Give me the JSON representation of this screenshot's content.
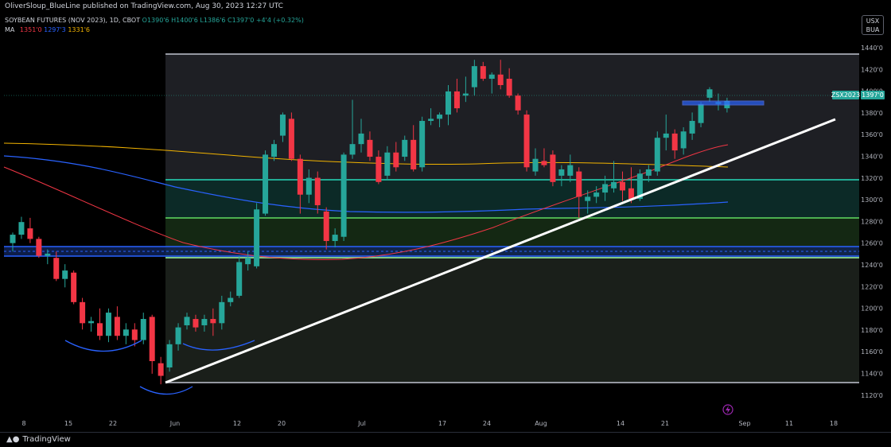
{
  "header": {
    "publisher_line": "OliverSloup_BlueLine published on TradingView.com, Aug 30, 2023 12:27 UTC"
  },
  "legend": {
    "symbol": "SOYBEAN FUTURES (NOV 2023), 1D, CBOT",
    "open_label": "O",
    "open": "1390'6",
    "high_label": "H",
    "high": "1400'6",
    "low_label": "L",
    "low": "1386'6",
    "close_label": "C",
    "close": "1397'0",
    "change": "+4'4 (+0.32%)",
    "ma_label": "MA",
    "ma_values": [
      "1351'0",
      "1297'3",
      "1331'6"
    ],
    "ma_colors": [
      "#f23645",
      "#2962ff",
      "#f2b300"
    ]
  },
  "currency_button": {
    "line1": "USX",
    "line2": "BUA"
  },
  "price_badge": {
    "symbol": "ZSX2023",
    "price": "1397'0"
  },
  "footer": {
    "brand": "TradingView"
  },
  "colors": {
    "up": "#26a69a",
    "down": "#f23645",
    "trend": "#ffffff",
    "bg": "#000000"
  },
  "chart_data": {
    "type": "candlestick",
    "y_ticks": [
      "1440'0",
      "1420'0",
      "1400'0",
      "1380'0",
      "1360'0",
      "1340'0",
      "1320'0",
      "1300'0",
      "1280'0",
      "1260'0",
      "1240'0",
      "1220'0",
      "1200'0",
      "1180'0",
      "1160'0",
      "1140'0",
      "1120'0"
    ],
    "x_ticks": [
      "8",
      "15",
      "22",
      "Jun",
      "12",
      "20",
      "Jul",
      "17",
      "24",
      "Aug",
      "14",
      "21",
      "Sep",
      "11",
      "18"
    ],
    "ylim": [
      1110,
      1452
    ],
    "candles": [
      {
        "o": 1262,
        "h": 1272,
        "l": 1254,
        "c": 1270
      },
      {
        "o": 1270,
        "h": 1287,
        "l": 1266,
        "c": 1282
      },
      {
        "o": 1276,
        "h": 1286,
        "l": 1262,
        "c": 1266
      },
      {
        "o": 1266,
        "h": 1268,
        "l": 1248,
        "c": 1250
      },
      {
        "o": 1250,
        "h": 1256,
        "l": 1242,
        "c": 1252
      },
      {
        "o": 1248,
        "h": 1254,
        "l": 1226,
        "c": 1228
      },
      {
        "o": 1228,
        "h": 1242,
        "l": 1220,
        "c": 1236
      },
      {
        "o": 1234,
        "h": 1236,
        "l": 1204,
        "c": 1206
      },
      {
        "o": 1206,
        "h": 1210,
        "l": 1180,
        "c": 1186
      },
      {
        "o": 1186,
        "h": 1192,
        "l": 1178,
        "c": 1188
      },
      {
        "o": 1186,
        "h": 1200,
        "l": 1170,
        "c": 1174
      },
      {
        "o": 1174,
        "h": 1200,
        "l": 1168,
        "c": 1196
      },
      {
        "o": 1192,
        "h": 1202,
        "l": 1170,
        "c": 1174
      },
      {
        "o": 1174,
        "h": 1186,
        "l": 1166,
        "c": 1180
      },
      {
        "o": 1180,
        "h": 1186,
        "l": 1164,
        "c": 1170
      },
      {
        "o": 1170,
        "h": 1196,
        "l": 1166,
        "c": 1190
      },
      {
        "o": 1192,
        "h": 1194,
        "l": 1138,
        "c": 1150
      },
      {
        "o": 1148,
        "h": 1154,
        "l": 1128,
        "c": 1136
      },
      {
        "o": 1144,
        "h": 1170,
        "l": 1140,
        "c": 1166
      },
      {
        "o": 1166,
        "h": 1186,
        "l": 1160,
        "c": 1182
      },
      {
        "o": 1184,
        "h": 1196,
        "l": 1180,
        "c": 1192
      },
      {
        "o": 1190,
        "h": 1194,
        "l": 1178,
        "c": 1182
      },
      {
        "o": 1184,
        "h": 1194,
        "l": 1178,
        "c": 1190
      },
      {
        "o": 1190,
        "h": 1200,
        "l": 1174,
        "c": 1186
      },
      {
        "o": 1186,
        "h": 1212,
        "l": 1180,
        "c": 1206
      },
      {
        "o": 1206,
        "h": 1216,
        "l": 1202,
        "c": 1210
      },
      {
        "o": 1212,
        "h": 1250,
        "l": 1210,
        "c": 1244
      },
      {
        "o": 1242,
        "h": 1254,
        "l": 1236,
        "c": 1248
      },
      {
        "o": 1240,
        "h": 1300,
        "l": 1238,
        "c": 1294
      },
      {
        "o": 1290,
        "h": 1350,
        "l": 1288,
        "c": 1346
      },
      {
        "o": 1344,
        "h": 1360,
        "l": 1340,
        "c": 1356
      },
      {
        "o": 1364,
        "h": 1386,
        "l": 1358,
        "c": 1384
      },
      {
        "o": 1380,
        "h": 1386,
        "l": 1340,
        "c": 1342
      },
      {
        "o": 1342,
        "h": 1346,
        "l": 1290,
        "c": 1308
      },
      {
        "o": 1308,
        "h": 1332,
        "l": 1300,
        "c": 1324
      },
      {
        "o": 1324,
        "h": 1330,
        "l": 1290,
        "c": 1298
      },
      {
        "o": 1292,
        "h": 1296,
        "l": 1256,
        "c": 1264
      },
      {
        "o": 1264,
        "h": 1276,
        "l": 1258,
        "c": 1270
      },
      {
        "o": 1268,
        "h": 1348,
        "l": 1264,
        "c": 1346
      },
      {
        "o": 1346,
        "h": 1398,
        "l": 1342,
        "c": 1356
      },
      {
        "o": 1356,
        "h": 1380,
        "l": 1348,
        "c": 1366
      },
      {
        "o": 1360,
        "h": 1368,
        "l": 1340,
        "c": 1344
      },
      {
        "o": 1344,
        "h": 1350,
        "l": 1318,
        "c": 1320
      },
      {
        "o": 1326,
        "h": 1354,
        "l": 1322,
        "c": 1348
      },
      {
        "o": 1348,
        "h": 1358,
        "l": 1330,
        "c": 1334
      },
      {
        "o": 1344,
        "h": 1364,
        "l": 1340,
        "c": 1360
      },
      {
        "o": 1360,
        "h": 1374,
        "l": 1330,
        "c": 1332
      },
      {
        "o": 1334,
        "h": 1382,
        "l": 1330,
        "c": 1378
      },
      {
        "o": 1378,
        "h": 1390,
        "l": 1374,
        "c": 1380
      },
      {
        "o": 1380,
        "h": 1386,
        "l": 1372,
        "c": 1384
      },
      {
        "o": 1384,
        "h": 1412,
        "l": 1374,
        "c": 1406
      },
      {
        "o": 1406,
        "h": 1418,
        "l": 1386,
        "c": 1390
      },
      {
        "o": 1402,
        "h": 1420,
        "l": 1396,
        "c": 1404
      },
      {
        "o": 1410,
        "h": 1436,
        "l": 1402,
        "c": 1430
      },
      {
        "o": 1430,
        "h": 1434,
        "l": 1416,
        "c": 1418
      },
      {
        "o": 1418,
        "h": 1424,
        "l": 1404,
        "c": 1422
      },
      {
        "o": 1422,
        "h": 1436,
        "l": 1408,
        "c": 1412
      },
      {
        "o": 1418,
        "h": 1428,
        "l": 1400,
        "c": 1402
      },
      {
        "o": 1402,
        "h": 1404,
        "l": 1384,
        "c": 1388
      },
      {
        "o": 1384,
        "h": 1388,
        "l": 1330,
        "c": 1334
      },
      {
        "o": 1330,
        "h": 1352,
        "l": 1326,
        "c": 1342
      },
      {
        "o": 1340,
        "h": 1352,
        "l": 1334,
        "c": 1336
      },
      {
        "o": 1346,
        "h": 1350,
        "l": 1316,
        "c": 1320
      },
      {
        "o": 1326,
        "h": 1336,
        "l": 1316,
        "c": 1332
      },
      {
        "o": 1326,
        "h": 1346,
        "l": 1320,
        "c": 1336
      },
      {
        "o": 1330,
        "h": 1334,
        "l": 1286,
        "c": 1306
      },
      {
        "o": 1302,
        "h": 1312,
        "l": 1290,
        "c": 1306
      },
      {
        "o": 1306,
        "h": 1316,
        "l": 1300,
        "c": 1310
      },
      {
        "o": 1310,
        "h": 1326,
        "l": 1302,
        "c": 1318
      },
      {
        "o": 1314,
        "h": 1340,
        "l": 1310,
        "c": 1320
      },
      {
        "o": 1320,
        "h": 1330,
        "l": 1302,
        "c": 1312
      },
      {
        "o": 1314,
        "h": 1334,
        "l": 1300,
        "c": 1304
      },
      {
        "o": 1304,
        "h": 1332,
        "l": 1302,
        "c": 1328
      },
      {
        "o": 1326,
        "h": 1336,
        "l": 1320,
        "c": 1332
      },
      {
        "o": 1330,
        "h": 1368,
        "l": 1326,
        "c": 1362
      },
      {
        "o": 1362,
        "h": 1384,
        "l": 1350,
        "c": 1366
      },
      {
        "o": 1366,
        "h": 1370,
        "l": 1342,
        "c": 1350
      },
      {
        "o": 1352,
        "h": 1372,
        "l": 1346,
        "c": 1368
      },
      {
        "o": 1366,
        "h": 1386,
        "l": 1360,
        "c": 1378
      },
      {
        "o": 1376,
        "h": 1396,
        "l": 1372,
        "c": 1394
      },
      {
        "o": 1400,
        "h": 1410,
        "l": 1396,
        "c": 1408
      },
      {
        "o": 1394,
        "h": 1404,
        "l": 1388,
        "c": 1396
      },
      {
        "o": 1390,
        "h": 1400,
        "l": 1386,
        "c": 1397
      }
    ]
  }
}
